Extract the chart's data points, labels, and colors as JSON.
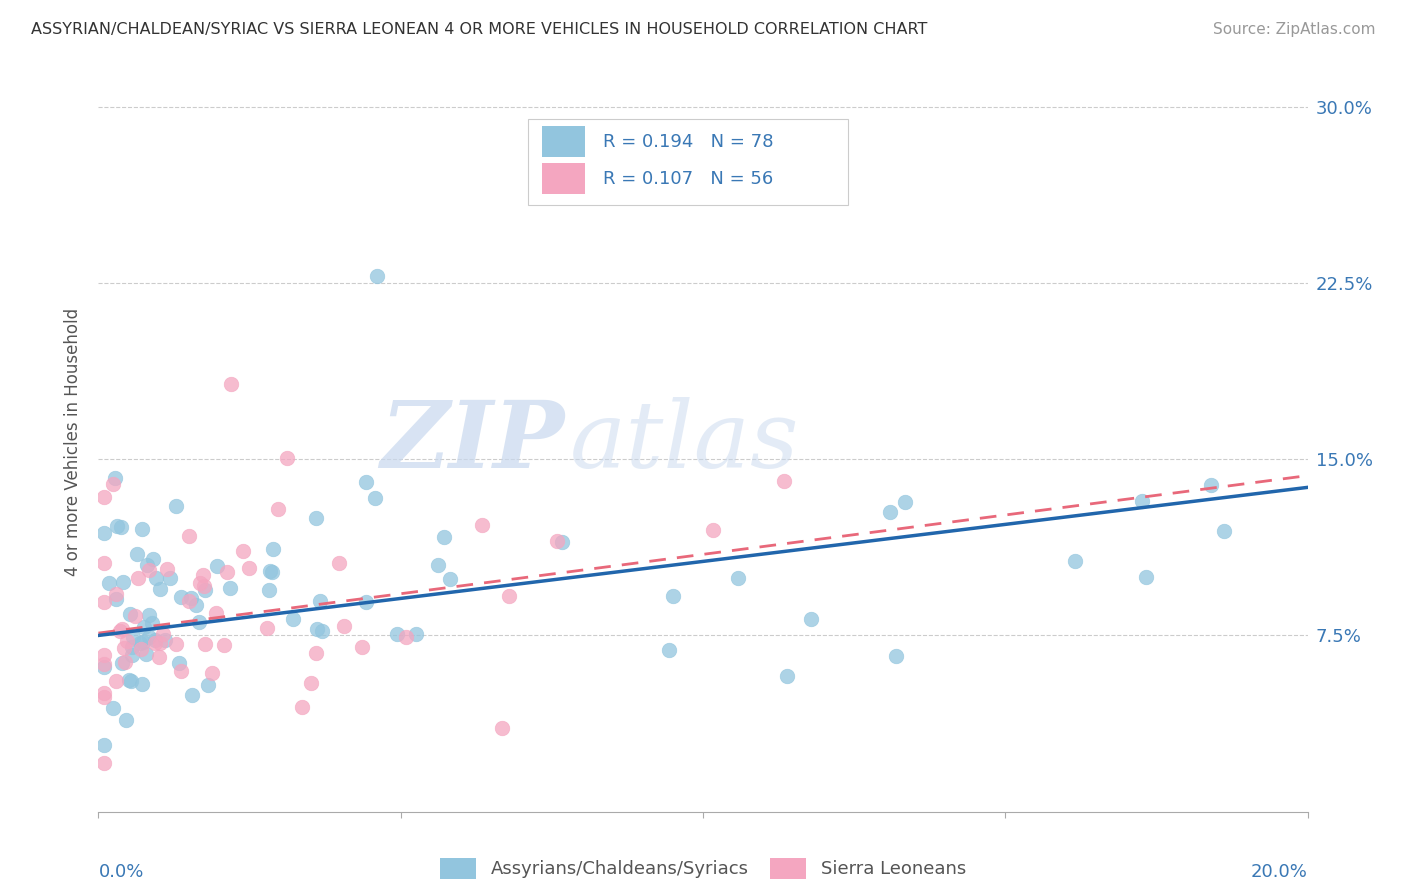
{
  "title": "ASSYRIAN/CHALDEAN/SYRIAC VS SIERRA LEONEAN 4 OR MORE VEHICLES IN HOUSEHOLD CORRELATION CHART",
  "source": "Source: ZipAtlas.com",
  "ylabel": "4 or more Vehicles in Household",
  "yticks": [
    "7.5%",
    "15.0%",
    "22.5%",
    "30.0%"
  ],
  "ytick_vals": [
    0.075,
    0.15,
    0.225,
    0.3
  ],
  "legend_r1": "R = 0.194",
  "legend_n1": "N = 78",
  "legend_r2": "R = 0.107",
  "legend_n2": "N = 56",
  "legend_label1": "Assyrians/Chaldeans/Syriacs",
  "legend_label2": "Sierra Leoneans",
  "color_blue": "#92c5de",
  "color_pink": "#f4a6c0",
  "color_blue_line": "#2166ac",
  "color_pink_line": "#e8687a",
  "watermark_zip": "ZIP",
  "watermark_atlas": "atlas",
  "xlim": [
    0.0,
    0.2
  ],
  "ylim": [
    0.0,
    0.315
  ],
  "blue_line_x0": 0.0,
  "blue_line_y0": 0.075,
  "blue_line_x1": 0.2,
  "blue_line_y1": 0.138,
  "pink_line_x0": 0.0,
  "pink_line_y0": 0.076,
  "pink_line_x1": 0.2,
  "pink_line_y1": 0.143,
  "background_color": "#ffffff",
  "grid_color": "#cccccc"
}
